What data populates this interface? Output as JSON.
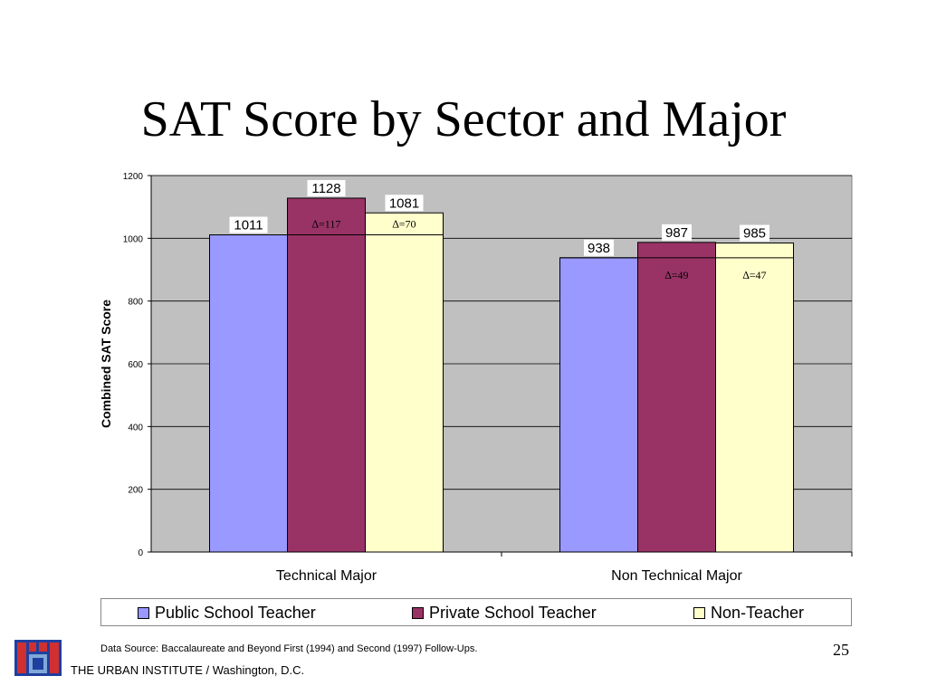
{
  "title": "SAT Score by Sector and Major",
  "chart_data": {
    "type": "bar",
    "title": "SAT Score by Sector and Major",
    "categories": [
      "Technical Major",
      "Non Technical Major"
    ],
    "series": [
      {
        "name": "Public School Teacher",
        "values": [
          1011,
          938
        ],
        "color": "#9999ff"
      },
      {
        "name": "Private School Teacher",
        "values": [
          1128,
          987
        ],
        "color": "#993366"
      },
      {
        "name": "Non-Teacher",
        "values": [
          1081,
          985
        ],
        "color": "#ffffcc"
      }
    ],
    "ylabel": "Combined SAT Score",
    "xlabel": "",
    "ylim": [
      0,
      1200
    ],
    "yticks": [
      0,
      200,
      400,
      600,
      800,
      1000,
      1200
    ],
    "grid": true,
    "plot_background": "#c0c0c0",
    "legend": "bottom",
    "annotations": [
      {
        "category": "Technical Major",
        "series": "Private School Teacher",
        "text": "=117"
      },
      {
        "category": "Technical Major",
        "series": "Non-Teacher",
        "text": "=70"
      },
      {
        "category": "Non Technical Major",
        "series": "Private School Teacher",
        "text": "=49"
      },
      {
        "category": "Non Technical Major",
        "series": "Non-Teacher",
        "text": "=47"
      }
    ]
  },
  "footer": {
    "source": "Data Source: Baccalaureate and Beyond First (1994) and Second (1997) Follow-Ups.",
    "slide_number": "25",
    "organization": "THE URBAN INSTITUTE / Washington, D.C.",
    "logo_icon": "urban-institute-logo-icon"
  }
}
